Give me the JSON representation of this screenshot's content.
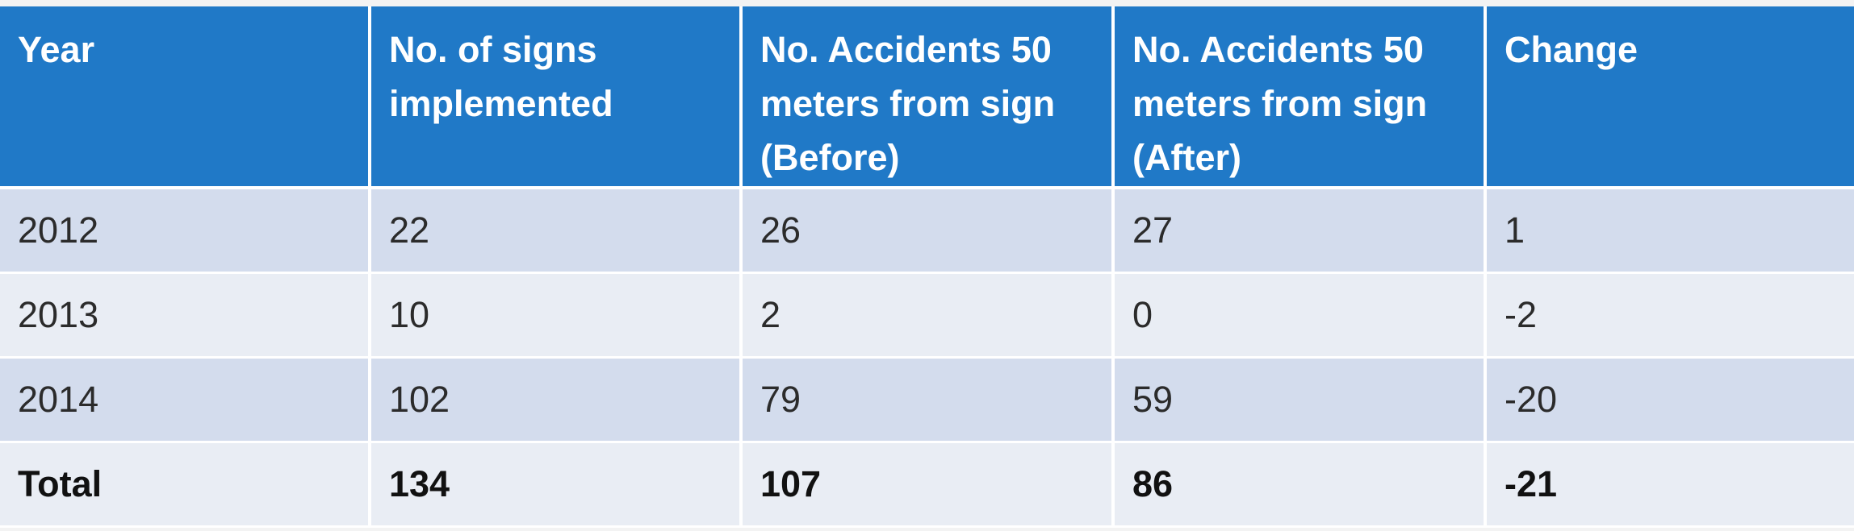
{
  "table": {
    "headers": [
      "Year",
      "No. of signs implemented",
      "No. Accidents 50 meters from sign (Before)",
      "No. Accidents 50 meters from sign (After)",
      "Change"
    ],
    "rows": [
      [
        "2012",
        "22",
        "26",
        "27",
        "1"
      ],
      [
        "2013",
        "10",
        "2",
        "0",
        "-2"
      ],
      [
        "2014",
        "102",
        "79",
        "59",
        "-20"
      ]
    ],
    "total": [
      "Total",
      "134",
      "107",
      "86",
      "-21"
    ]
  },
  "colors": {
    "header_bg": "#2079c7",
    "row_odd_bg": "#d3dced",
    "row_even_bg": "#e9edf4"
  }
}
